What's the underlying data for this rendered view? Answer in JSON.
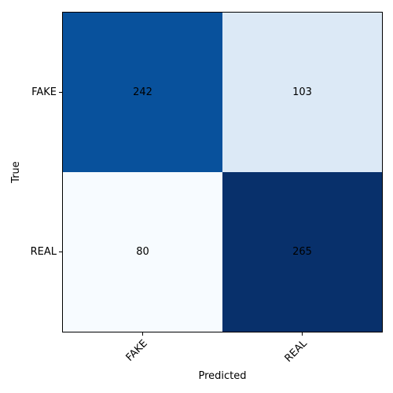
{
  "chart_data": {
    "type": "heatmap",
    "title": "",
    "xlabel": "Predicted",
    "ylabel": "True",
    "x_categories": [
      "FAKE",
      "REAL"
    ],
    "y_categories": [
      "FAKE",
      "REAL"
    ],
    "values": [
      [
        242,
        103
      ],
      [
        80,
        265
      ]
    ],
    "colormap": "Blues",
    "grid": false,
    "legend": "none",
    "cell_colors": [
      [
        "#08519c",
        "#dce9f6"
      ],
      [
        "#f7fbff",
        "#08306b"
      ]
    ],
    "text_colors": [
      [
        "#000000",
        "#000000"
      ],
      [
        "#000000",
        "#000000"
      ]
    ]
  }
}
